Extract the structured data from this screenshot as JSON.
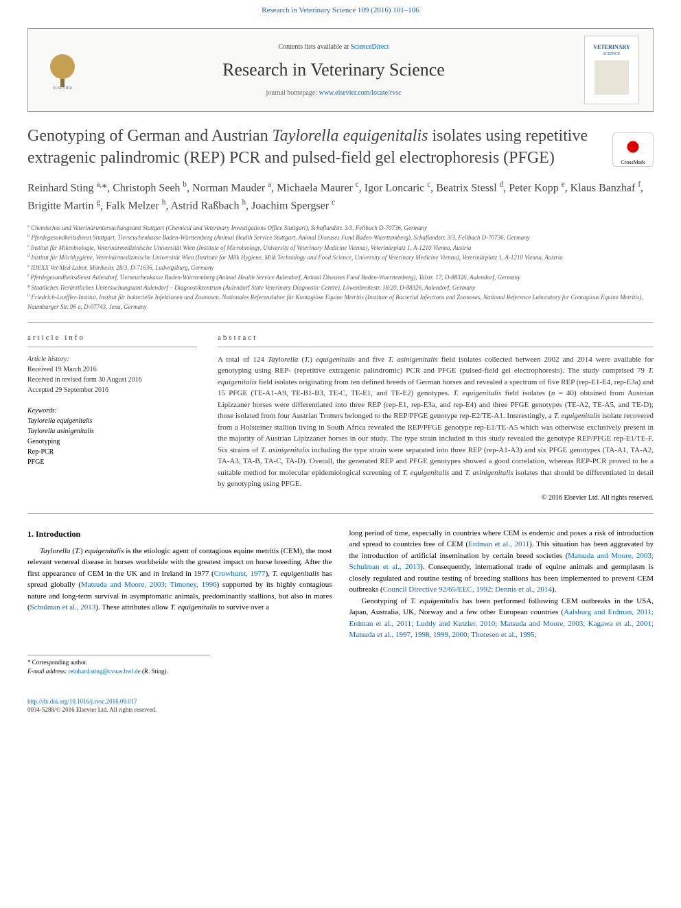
{
  "top_link": "Research in Veterinary Science 109 (2016) 101–106",
  "header": {
    "contents_text": "Contents lists available at ",
    "contents_link": "ScienceDirect",
    "journal_title": "Research in Veterinary Science",
    "homepage_label": "journal homepage: ",
    "homepage_url": "www.elsevier.com/locate/rvsc",
    "cover_text": "VETERINARY"
  },
  "crossmark": "CrossMark",
  "article": {
    "title": "Genotyping of German and Austrian Taylorella equigenitalis isolates using repetitive extragenic palindromic (REP) PCR and pulsed-field gel electrophoresis (PFGE)",
    "authors_html": "Reinhard Sting <sup>a,</sup>*, Christoph Seeh <sup>b</sup>, Norman Mauder <sup>a</sup>, Michaela Maurer <sup>c</sup>, Igor Loncaric <sup>c</sup>, Beatrix Stessl <sup>d</sup>, Peter Kopp <sup>e</sup>, Klaus Banzhaf <sup>f</sup>, Brigitte Martin <sup>g</sup>, Falk Melzer <sup>h</sup>, Astrid Raßbach <sup>h</sup>, Joachim Spergser <sup>c</sup>"
  },
  "affiliations": [
    "a Chemisches und Veterinäruntersuchungsamt Stuttgart (Chemical and Veterinary Investigations Office Stuttgart), Schaflandstr. 3/3, Fellbach D-70736, Germany",
    "b Pferdegesundheitsdienst Stuttgart, Tierseuchenkasse Baden-Württemberg (Animal Health Service Stuttgart, Animal Diseases Fund Baden-Wuerttemberg), Schaflandstr. 3/3, Fellbach D-70736, Germany",
    "c Institut für Mikrobiologie, Veterinärmedizinische Universität Wien (Institute of Microbiology, University of Veterinary Medicine Vienna), Veterinärplatz 1, A-1210 Vienna, Austria",
    "d Institut für Milchhygiene, Veterinärmedizinische Universität Wien (Institute for Milk Hygiene, Milk Technology and Food Science, University of Veterinary Medicine Vienna), Veterinärplatz 1, A-1210 Vienna, Austria",
    "e IDEXX Vet·Med·Labor, Mörikestr. 28/3, D-71636, Ludwigsburg, Germany",
    "f Pferdegesundheitsdienst Aulendorf, Tierseuchenkasse Baden-Württemberg (Animal Health Service Aulendorf, Animal Diseases Fund Baden-Wuerttemberg), Talstr. 17, D-88326, Aulendorf, Germany",
    "g Staatliches Tierärztliches Untersuchungsamt Aulendorf – Diagnostikzentrum (Aulendorf State Veterinary Diagnostic Centre), Löwenbreitestr. 18/20, D-88326, Aulendorf, Germany",
    "h Friedrich-Loeffler-Institut, Institut für bakterielle Infektionen und Zoonosen, Nationales Referenzlabor für Kontagiöse Equine Metritis (Institute of Bacterial Infections and Zoonoses, National Reference Laboratory for Contagious Equine Metritis), Naumburger Str. 96 a, D-07743, Jena, Germany"
  ],
  "info": {
    "section_label": "article info",
    "history_label": "Article history:",
    "received": "Received 19 March 2016",
    "revised": "Received in revised form 30 August 2016",
    "accepted": "Accepted 29 September 2016",
    "keywords_label": "Keywords:",
    "keywords": [
      "Taylorella equigenitalis",
      "Taylorella asinigenitalis",
      "Genotyping",
      "Rep-PCR",
      "PFGE"
    ]
  },
  "abstract": {
    "section_label": "abstract",
    "text": "A total of 124 Taylorella (T.) equigenitalis and five T. asinigenitalis field isolates collected between 2002 and 2014 were available for genotyping using REP- (repetitive extragenic palindromic) PCR and PFGE (pulsed-field gel electrophoresis). The study comprised 79 T. equigenitalis field isolates originating from ten defined breeds of German horses and revealed a spectrum of five REP (rep-E1-E4, rep-E3a) and 15 PFGE (TE-A1-A9, TE-B1-B3, TE-C, TE-E1, and TE-E2) genotypes. T. equigenitalis field isolates (n = 40) obtained from Austrian Lipizzaner horses were differentiated into three REP (rep-E1, rep-E3a, and rep-E4) and three PFGE genotypes (TE-A2, TE-A5, and TE-D); those isolated from four Austrian Trotters belonged to the REP/PFGE genotype rep-E2/TE-A1. Interestingly, a T. equigenitalis isolate recovered from a Holsteiner stallion living in South Africa revealed the REP/PFGE genotype rep-E1/TE-A5 which was otherwise exclusively present in the majority of Austrian Lipizzaner horses in our study. The type strain included in this study revealed the genotype REP/PFGE rep-E1/TE-F. Six strains of T. asinigenitalis including the type strain were separated into three REP (rep-A1-A3) and six PFGE genotypes (TA-A1, TA-A2, TA-A3, TA-B, TA-C, TA-D). Overall, the generated REP and PFGE genotypes showed a good correlation, whereas REP-PCR proved to be a suitable method for molecular epidemiological screening of T. equigenitalis and T. asinigenitalis isolates that should be differentiated in detail by genotyping using PFGE.",
    "copyright": "© 2016 Elsevier Ltd. All rights reserved."
  },
  "intro": {
    "heading": "1. Introduction",
    "para1_pre": "Taylorella (T.) equigenitalis is the etiologic agent of contagious equine metritis (CEM), the most relevant venereal disease in horses worldwide with the greatest impact on horse breeding. After the first appearance of CEM in the UK and in Ireland in 1977 (",
    "para1_link1": "Crowhurst, 1977",
    "para1_mid1": "), T. equigenitalis has spread globally (",
    "para1_link2": "Matsuda and Moore, 2003; Timoney, 1996",
    "para1_mid2": ") supported by its highly contagious nature and long-term survival in asymptomatic animals, predominantly stallions, but also in mares (",
    "para1_link3": "Schulman et al., 2013",
    "para1_post": "). These attributes allow T. equigenitalis to survive over a",
    "para2_pre": "long period of time, especially in countries where CEM is endemic and poses a risk of introduction and spread to countries free of CEM (",
    "para2_link1": "Erdman et al., 2011",
    "para2_mid1": "). This situation has been aggravated by the introduction of artificial insemination by certain breed societies (",
    "para2_link2": "Matsuda and Moore, 2003; Schulman et al., 2013",
    "para2_mid2": "). Consequently, international trade of equine animals and germplasm is closely regulated and routine testing of breeding stallions has been implemented to prevent CEM outbreaks (",
    "para2_link3": "Council Directive 92/65/EEC, 1992; Dennis et al., 2014",
    "para2_post": ").",
    "para3_pre": "Genotyping of T. equigenitalis has been performed following CEM outbreaks in the USA, Japan, Australia, UK, Norway and a few other European countries (",
    "para3_link1": "Aalsburg and Erdman, 2011; Erdman et al., 2011; Luddy and Kutzler, 2010; Matsuda and Moore, 2003; Kagawa et al., 2001; Matsuda et al., 1997, 1998, 1999, 2000; Thoresen et al., 1995;"
  },
  "corresponding": {
    "star": "* Corresponding author.",
    "email_label": "E-mail address: ",
    "email": "reinhard.sting@cvuas.bwl.de",
    "email_suffix": " (R. Sting)."
  },
  "footer": {
    "doi": "http://dx.doi.org/10.1016/j.rvsc.2016.09.017",
    "issn": "0034-5288/© 2016 Elsevier Ltd. All rights reserved."
  },
  "colors": {
    "link": "#0066cc",
    "text": "#333333",
    "border": "#999999"
  }
}
